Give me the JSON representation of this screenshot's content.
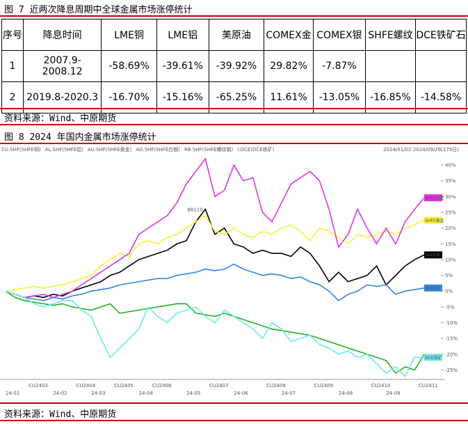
{
  "figure7": {
    "title": "图 7 近两次降息周期中全球金属市场涨停统计",
    "table": {
      "header": [
        "序号",
        "降息时间",
        "LME铜",
        "LME铝",
        "美原油",
        "COMEX金",
        "COMEX银",
        "SHFE螺纹",
        "DCE铁矿石"
      ],
      "rows": [
        [
          "1",
          "2007.9-2008.12",
          "-58.69%",
          "-39.61%",
          "-39.92%",
          "29.82%",
          "-7.87%"
        ],
        [
          "2",
          "2019.8-2020.3",
          "-16.70%",
          "-15.16%",
          "-65.25%",
          "11.61%",
          "-13.05%",
          "-16.85%",
          "-14.58%"
        ]
      ]
    },
    "source": "资料来源：Wind、中原期货"
  },
  "figure8": {
    "title": "图 8 2024 年国内金属市场涨停统计",
    "source": "资料来源：Wind、中原期货"
  },
  "chart_data": {
    "type": "line",
    "subtitle": "2024/01/02-2024/09/26(179日)",
    "annotation": "88110",
    "categories": [
      "24-01",
      null,
      null,
      null,
      null,
      "24-02",
      null,
      null,
      null,
      "24-03",
      null,
      null,
      null,
      null,
      "24-04",
      null,
      null,
      null,
      null,
      "24-05",
      null,
      null,
      null,
      null,
      "24-06",
      null,
      null,
      null,
      null,
      "24-07",
      null,
      null,
      null,
      null,
      null,
      "24-08",
      null,
      null,
      null,
      null,
      "24-09",
      null,
      null,
      null,
      null
    ],
    "contract_labels": [
      null,
      null,
      null,
      "CU2403",
      null,
      null,
      null,
      null,
      "CU2404",
      null,
      null,
      null,
      "CU2405",
      null,
      null,
      null,
      "CU2406",
      null,
      null,
      null,
      null,
      null,
      "CU2407",
      null,
      null,
      null,
      null,
      null,
      "CU2408",
      null,
      null,
      null,
      null,
      "CU2409",
      null,
      null,
      null,
      null,
      null,
      "CU2410",
      null,
      null,
      null,
      null,
      "CU2411"
    ],
    "ylim": [
      -28,
      42
    ],
    "yticks": [
      {
        "value": 40,
        "label": "40%"
      },
      {
        "value": 35,
        "label": "35%"
      },
      {
        "value": 30,
        "label": "30%"
      },
      {
        "value": 25,
        "label": "25%"
      },
      {
        "value": 20,
        "label": "20%"
      },
      {
        "value": 15,
        "label": "15%"
      },
      {
        "value": 10,
        "label": "10%"
      },
      {
        "value": 5,
        "label": "5%"
      },
      {
        "value": 0,
        "label": "0%"
      },
      {
        "value": -5,
        "label": "-5%"
      },
      {
        "value": -10,
        "label": "-10%"
      },
      {
        "value": -15,
        "label": "-15%"
      },
      {
        "value": -20,
        "label": "-20%"
      },
      {
        "value": -25,
        "label": "-25%"
      }
    ],
    "series": [
      {
        "name": "CU.SHF(SHFE铜)",
        "end_label": "SHFE铜",
        "color": "#000000",
        "values": [
          0,
          -1,
          -2,
          -1.5,
          -2,
          -1,
          -1.5,
          0,
          1,
          2,
          3,
          5,
          6,
          8,
          10,
          11,
          12,
          13,
          15,
          16,
          22,
          26,
          18,
          20,
          15,
          14,
          12,
          13,
          12,
          12,
          11,
          14,
          12,
          8,
          3,
          6,
          3,
          4,
          5,
          8,
          2,
          5,
          8,
          10,
          11.5
        ]
      },
      {
        "name": "AL.SHF(SHFE铝)",
        "end_label": "SHFE铝",
        "color": "#2e86de",
        "values": [
          0,
          -1,
          -2,
          -2.5,
          -3,
          -2,
          -2.5,
          -1.5,
          -1,
          0,
          0.5,
          1,
          2,
          2.5,
          3,
          3.5,
          4,
          4,
          5,
          5.5,
          6,
          7,
          6.5,
          7,
          8.6,
          7,
          6,
          5,
          5.5,
          5,
          4,
          4.5,
          3,
          2,
          0,
          -3,
          -1,
          0,
          2,
          1.5,
          2,
          -1,
          0,
          0.5,
          1
        ]
      },
      {
        "name": "AU.SHF(SHFE黄金)",
        "end_label": "SHFE黄金",
        "color": "#f5f03a",
        "values": [
          0,
          0.5,
          1,
          1.5,
          1,
          1.5,
          2,
          3,
          4,
          5,
          8,
          10,
          12,
          11,
          15,
          16,
          15,
          17,
          18,
          20,
          22,
          24,
          19,
          18,
          20,
          18,
          17,
          19,
          18,
          20,
          21,
          19,
          16,
          20,
          19,
          17,
          15,
          18,
          17,
          18,
          19,
          18,
          20,
          21,
          22.5
        ]
      },
      {
        "name": "AG.SHF(SHFE白银)",
        "end_label": "SHFE白银",
        "color": "#e033e0",
        "values": [
          0,
          -1,
          -2,
          -1.5,
          -1,
          -2,
          -1,
          0,
          2,
          4,
          6,
          8,
          10,
          12,
          18,
          20,
          22,
          24,
          28,
          34,
          38,
          42,
          30,
          32,
          40,
          35,
          36,
          25,
          22,
          28,
          34,
          36,
          38,
          35,
          26,
          14,
          18,
          26,
          20,
          15,
          20,
          15,
          22,
          26,
          29.6
        ]
      },
      {
        "name": "RB.SHF(SHFE螺纹钢)",
        "end_label": null,
        "color": "#22b122",
        "values": [
          0,
          -2,
          -3,
          -3.5,
          -4,
          -4.5,
          -4,
          -5,
          -5.5,
          -6,
          -5,
          -4,
          -7,
          -6.5,
          -6,
          -5.5,
          -5,
          -4.5,
          -4,
          -4,
          -7,
          -7.5,
          -8,
          -7,
          -8,
          -9,
          -10,
          -11,
          -12,
          -12.5,
          -13,
          -13.5,
          -14,
          -15,
          -16,
          -17,
          -18,
          -19,
          -20,
          -21,
          -22,
          -26,
          -24,
          -25,
          -20
        ]
      },
      {
        "name": "I.DCE(DCE铁矿)",
        "end_label": "DCE铁矿",
        "color": "#6ee8e8",
        "values": [
          0,
          -1,
          -2,
          -4,
          -5,
          -4,
          -3,
          -3,
          -6,
          -8,
          -15,
          -21,
          -18,
          -15,
          -12,
          -5,
          -8,
          -10,
          -7,
          -6,
          -5,
          -8,
          -10,
          -6,
          -8,
          -10,
          -12,
          -15,
          -10,
          -12,
          -16,
          -15,
          -14,
          -17,
          -18,
          -20,
          -19,
          -21,
          -20,
          -23,
          -26,
          -24,
          -27,
          -21,
          -21
        ]
      }
    ]
  }
}
